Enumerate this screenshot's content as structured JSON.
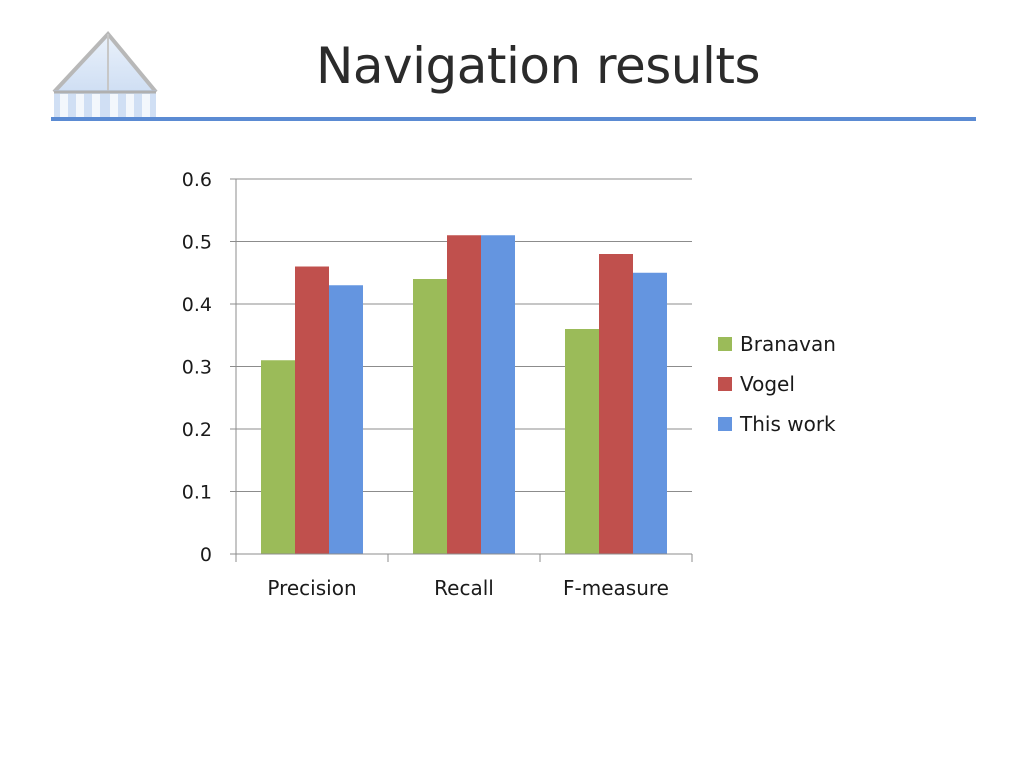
{
  "slide": {
    "title": "Navigation results"
  },
  "colors": {
    "title_rule": "#5b8bd3",
    "gridline": "#8c8c8c",
    "axis": "#8c8c8c"
  },
  "chart_data": {
    "type": "bar",
    "title": "",
    "xlabel": "",
    "ylabel": "",
    "categories": [
      "Precision",
      "Recall",
      "F-measure"
    ],
    "series": [
      {
        "name": "Branavan",
        "values": [
          0.31,
          0.44,
          0.36
        ],
        "color": "#9bbb59"
      },
      {
        "name": "Vogel",
        "values": [
          0.46,
          0.51,
          0.48
        ],
        "color": "#c0504d"
      },
      {
        "name": "This work",
        "values": [
          0.43,
          0.51,
          0.45
        ],
        "color": "#6495e0"
      }
    ],
    "ylim": [
      0,
      0.6
    ],
    "yticks": [
      "0",
      "0.1",
      "0.2",
      "0.3",
      "0.4",
      "0.5",
      "0.6"
    ],
    "grid": true,
    "legend_position": "right"
  }
}
